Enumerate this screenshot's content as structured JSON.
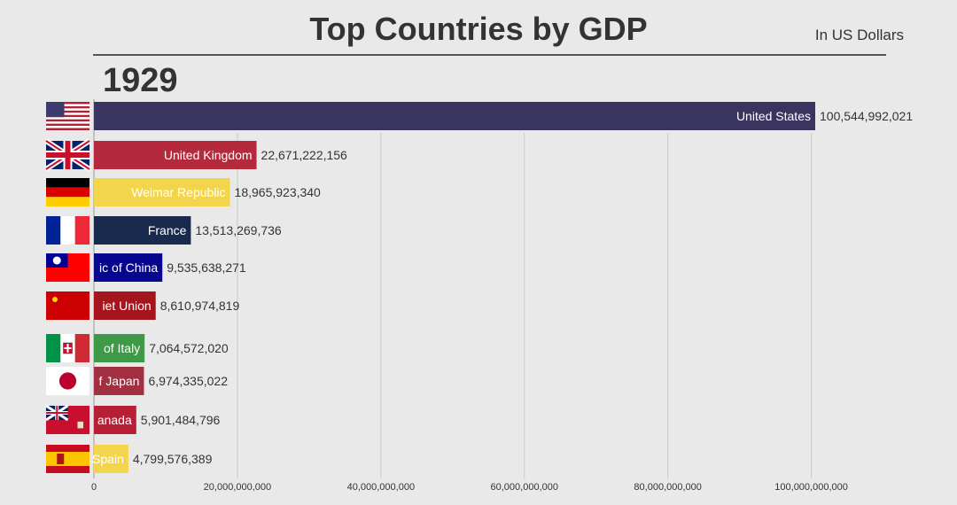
{
  "chart_data": {
    "type": "bar",
    "orientation": "horizontal",
    "title": "Top Countries by GDP",
    "subtitle": "In US Dollars",
    "year": "1929",
    "xlim": [
      0,
      100544992021
    ],
    "xticks": [
      0,
      20000000000,
      40000000000,
      60000000000,
      80000000000,
      100000000000
    ],
    "xtick_labels": [
      "0",
      "20,000,000,000",
      "40,000,000,000",
      "60,000,000,000",
      "80,000,000,000",
      "100,000,000,000"
    ],
    "grid": true,
    "bars": [
      {
        "label": "United States",
        "value": 100544992021,
        "value_label": "100,544,992,021",
        "color": "#3a3461",
        "label_color": "#ffffff",
        "flag": "usa-flag"
      },
      {
        "label": "United Kingdom",
        "value": 22671222156,
        "value_label": "22,671,222,156",
        "color": "#b42a3c",
        "label_color": "#ffffff",
        "flag": "uk-flag"
      },
      {
        "label": "Weimar Republic",
        "value": 18965923340,
        "value_label": "18,965,923,340",
        "color": "#f3d54b",
        "label_color": "#ffffff",
        "flag": "germany-flag"
      },
      {
        "label": "France",
        "value": 13513269736,
        "value_label": "13,513,269,736",
        "color": "#1a2a4e",
        "label_color": "#ffffff",
        "flag": "france-flag"
      },
      {
        "label": "ic of China",
        "value": 9535638271,
        "value_label": "9,535,638,271",
        "color": "#06068f",
        "label_color": "#ffffff",
        "flag": "roc-flag"
      },
      {
        "label": "iet Union",
        "value": 8610974819,
        "value_label": "8,610,974,819",
        "color": "#a5151c",
        "label_color": "#ffffff",
        "flag": "ussr-flag"
      },
      {
        "label": "of Italy",
        "value": 7064572020,
        "value_label": "7,064,572,020",
        "color": "#3f9a48",
        "label_color": "#ffffff",
        "flag": "italy-flag"
      },
      {
        "label": "f Japan",
        "value": 6974335022,
        "value_label": "6,974,335,022",
        "color": "#a23040",
        "label_color": "#ffffff",
        "flag": "japan-flag"
      },
      {
        "label": "anada",
        "value": 5901484796,
        "value_label": "5,901,484,796",
        "color": "#b71f35",
        "label_color": "#ffffff",
        "flag": "canada-flag"
      },
      {
        "label": "Spain",
        "value": 4799576389,
        "value_label": "4,799,576,389",
        "color": "#f3d54b",
        "label_color": "#ffffff",
        "flag": "spain-flag"
      }
    ]
  }
}
